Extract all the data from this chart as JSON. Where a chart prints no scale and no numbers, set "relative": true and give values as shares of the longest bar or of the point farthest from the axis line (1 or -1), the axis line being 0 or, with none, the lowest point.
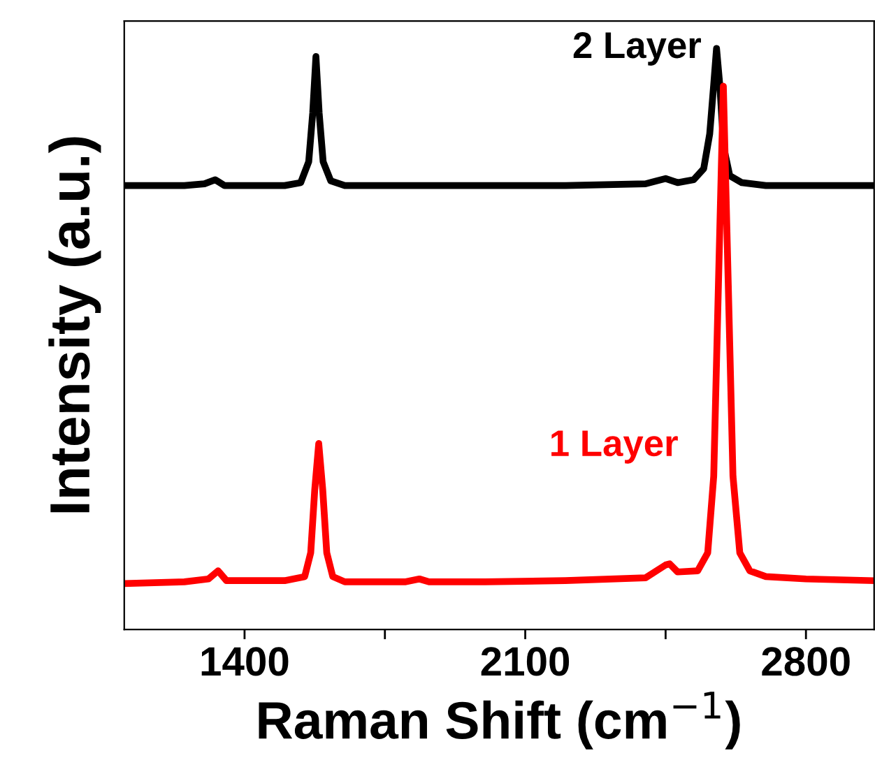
{
  "chart_data": {
    "type": "line",
    "relative": true,
    "xlabel": "Raman Shift (cm$^{−1}$)",
    "ylabel": "Intensity (a.u.)",
    "xlim": [
      1100,
      2970
    ],
    "xticks": [
      1400,
      {
        "value": 1750,
        "label": null
      },
      2100,
      {
        "value": 2450,
        "label": null
      },
      2800
    ],
    "tick_labels": "x",
    "grid": false,
    "legend": false,
    "marker": "none",
    "line_style": "solid",
    "series": [
      {
        "name": "2 Layer",
        "color": "#000000",
        "x": [
          1100,
          1250,
          1300,
          1327,
          1350,
          1500,
          1540,
          1560,
          1570,
          1578,
          1586,
          1596,
          1615,
          1650,
          1800,
          2000,
          2200,
          2400,
          2450,
          2480,
          2520,
          2545,
          2560,
          2570,
          2577,
          2585,
          2595,
          2610,
          2640,
          2700,
          2800,
          2970
        ],
        "values": [
          0.764,
          0.764,
          0.767,
          0.774,
          0.764,
          0.764,
          0.769,
          0.805,
          0.889,
          0.986,
          0.889,
          0.805,
          0.772,
          0.764,
          0.764,
          0.764,
          0.764,
          0.767,
          0.776,
          0.769,
          0.774,
          0.793,
          0.853,
          0.938,
          1,
          0.938,
          0.829,
          0.781,
          0.769,
          0.764,
          0.764,
          0.764
        ]
      },
      {
        "name": "1 Layer",
        "color": "#ff0000",
        "x": [
          1100,
          1250,
          1310,
          1334,
          1355,
          1500,
          1550,
          1565,
          1575,
          1585,
          1595,
          1605,
          1620,
          1650,
          1800,
          1836,
          1860,
          2000,
          2200,
          2400,
          2450,
          2460,
          2480,
          2530,
          2555,
          2570,
          2582,
          2594,
          2606,
          2618,
          2635,
          2660,
          2700,
          2800,
          2970
        ],
        "values": [
          0.079,
          0.082,
          0.087,
          0.101,
          0.084,
          0.084,
          0.091,
          0.132,
          0.24,
          0.32,
          0.24,
          0.132,
          0.091,
          0.082,
          0.082,
          0.087,
          0.082,
          0.082,
          0.084,
          0.089,
          0.111,
          0.113,
          0.099,
          0.101,
          0.132,
          0.264,
          0.601,
          0.935,
          0.601,
          0.264,
          0.132,
          0.101,
          0.091,
          0.087,
          0.084
        ]
      }
    ]
  }
}
